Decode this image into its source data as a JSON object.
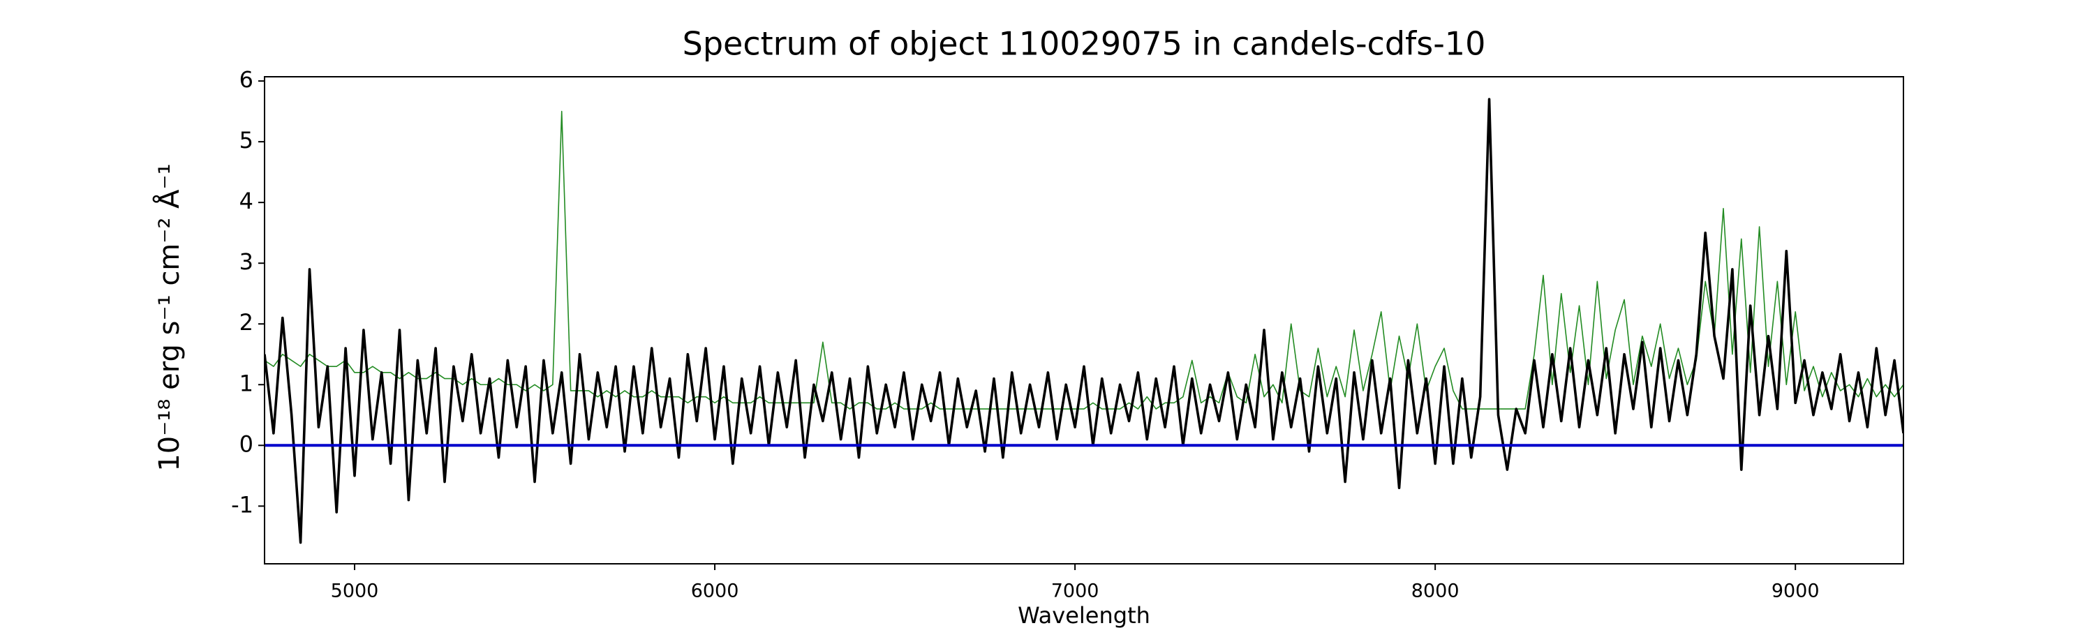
{
  "chart_data": {
    "type": "line",
    "title": "Spectrum of object 110029075 in candels-cdfs-10",
    "xlabel": "Wavelength",
    "ylabel": "10⁻¹⁸ erg s⁻¹ cm⁻² Å⁻¹",
    "xlim": [
      4750,
      9300
    ],
    "ylim": [
      -1.95,
      6.07
    ],
    "xticks": [
      5000,
      6000,
      7000,
      8000,
      9000
    ],
    "yticks": [
      -1,
      0,
      1,
      2,
      3,
      4,
      5,
      6
    ],
    "hlines": [
      {
        "value": 0,
        "color": "#0000cc"
      }
    ],
    "x": [
      4750,
      4775,
      4800,
      4825,
      4850,
      4875,
      4900,
      4925,
      4950,
      4975,
      5000,
      5025,
      5050,
      5075,
      5100,
      5125,
      5150,
      5175,
      5200,
      5225,
      5250,
      5275,
      5300,
      5325,
      5350,
      5375,
      5400,
      5425,
      5450,
      5475,
      5500,
      5525,
      5550,
      5575,
      5600,
      5625,
      5650,
      5675,
      5700,
      5725,
      5750,
      5775,
      5800,
      5825,
      5850,
      5875,
      5900,
      5925,
      5950,
      5975,
      6000,
      6025,
      6050,
      6075,
      6100,
      6125,
      6150,
      6175,
      6200,
      6225,
      6250,
      6275,
      6300,
      6325,
      6350,
      6375,
      6400,
      6425,
      6450,
      6475,
      6500,
      6525,
      6550,
      6575,
      6600,
      6625,
      6650,
      6675,
      6700,
      6725,
      6750,
      6775,
      6800,
      6825,
      6850,
      6875,
      6900,
      6925,
      6950,
      6975,
      7000,
      7025,
      7050,
      7075,
      7100,
      7125,
      7150,
      7175,
      7200,
      7225,
      7250,
      7275,
      7300,
      7325,
      7350,
      7375,
      7400,
      7425,
      7450,
      7475,
      7500,
      7525,
      7550,
      7575,
      7600,
      7625,
      7650,
      7675,
      7700,
      7725,
      7750,
      7775,
      7800,
      7825,
      7850,
      7875,
      7900,
      7925,
      7950,
      7975,
      8000,
      8025,
      8050,
      8075,
      8100,
      8125,
      8150,
      8175,
      8200,
      8225,
      8250,
      8275,
      8300,
      8325,
      8350,
      8375,
      8400,
      8425,
      8450,
      8475,
      8500,
      8525,
      8550,
      8575,
      8600,
      8625,
      8650,
      8675,
      8700,
      8725,
      8750,
      8775,
      8800,
      8825,
      8850,
      8875,
      8900,
      8925,
      8950,
      8975,
      9000,
      9025,
      9050,
      9075,
      9100,
      9125,
      9150,
      9175,
      9200,
      9225,
      9250,
      9275,
      9300
    ],
    "series": [
      {
        "color": "#000000",
        "values": [
          1.5,
          0.2,
          2.1,
          0.5,
          -1.6,
          2.9,
          0.3,
          1.3,
          -1.1,
          1.6,
          -0.5,
          1.9,
          0.1,
          1.2,
          -0.3,
          1.9,
          -0.9,
          1.4,
          0.2,
          1.6,
          -0.6,
          1.3,
          0.4,
          1.5,
          0.2,
          1.1,
          -0.2,
          1.4,
          0.3,
          1.3,
          -0.6,
          1.4,
          0.2,
          1.2,
          -0.3,
          1.5,
          0.1,
          1.2,
          0.3,
          1.3,
          -0.1,
          1.3,
          0.2,
          1.6,
          0.3,
          1.1,
          -0.2,
          1.5,
          0.4,
          1.6,
          0.1,
          1.3,
          -0.3,
          1.1,
          0.2,
          1.3,
          0.0,
          1.2,
          0.3,
          1.4,
          -0.2,
          1.0,
          0.4,
          1.2,
          0.1,
          1.1,
          -0.2,
          1.3,
          0.2,
          1.0,
          0.3,
          1.2,
          0.1,
          1.0,
          0.4,
          1.2,
          0.0,
          1.1,
          0.3,
          0.9,
          -0.1,
          1.1,
          -0.2,
          1.2,
          0.2,
          1.0,
          0.3,
          1.2,
          0.1,
          1.0,
          0.3,
          1.3,
          0.0,
          1.1,
          0.2,
          1.0,
          0.4,
          1.2,
          0.1,
          1.1,
          0.3,
          1.3,
          0.0,
          1.1,
          0.2,
          1.0,
          0.4,
          1.2,
          0.1,
          1.0,
          0.3,
          1.9,
          0.1,
          1.2,
          0.3,
          1.1,
          -0.1,
          1.3,
          0.2,
          1.1,
          -0.6,
          1.2,
          0.1,
          1.4,
          0.2,
          1.1,
          -0.7,
          1.4,
          0.2,
          1.1,
          -0.3,
          1.3,
          -0.3,
          1.1,
          -0.2,
          0.8,
          5.7,
          0.5,
          -0.4,
          0.6,
          0.2,
          1.4,
          0.3,
          1.5,
          0.4,
          1.6,
          0.3,
          1.4,
          0.5,
          1.6,
          0.2,
          1.5,
          0.6,
          1.7,
          0.3,
          1.6,
          0.4,
          1.4,
          0.5,
          1.5,
          3.5,
          1.8,
          1.1,
          2.9,
          -0.4,
          2.3,
          0.5,
          1.8,
          0.6,
          3.2,
          0.7,
          1.4,
          0.5,
          1.2,
          0.6,
          1.5,
          0.4,
          1.2,
          0.3,
          1.6,
          0.5,
          1.4,
          0.2
        ]
      },
      {
        "color": "#228b22",
        "values": [
          1.4,
          1.3,
          1.5,
          1.4,
          1.3,
          1.5,
          1.4,
          1.3,
          1.3,
          1.4,
          1.2,
          1.2,
          1.3,
          1.2,
          1.2,
          1.1,
          1.2,
          1.1,
          1.1,
          1.2,
          1.1,
          1.1,
          1.0,
          1.1,
          1.0,
          1.0,
          1.1,
          1.0,
          1.0,
          0.9,
          1.0,
          0.9,
          1.0,
          5.5,
          0.9,
          0.9,
          0.9,
          0.8,
          0.9,
          0.8,
          0.9,
          0.8,
          0.8,
          0.9,
          0.8,
          0.8,
          0.8,
          0.7,
          0.8,
          0.8,
          0.7,
          0.8,
          0.7,
          0.7,
          0.7,
          0.8,
          0.7,
          0.7,
          0.7,
          0.7,
          0.7,
          0.7,
          1.7,
          0.7,
          0.7,
          0.6,
          0.7,
          0.7,
          0.6,
          0.6,
          0.7,
          0.6,
          0.6,
          0.6,
          0.7,
          0.6,
          0.6,
          0.6,
          0.6,
          0.6,
          0.6,
          0.6,
          0.6,
          0.6,
          0.6,
          0.6,
          0.6,
          0.6,
          0.6,
          0.6,
          0.6,
          0.6,
          0.7,
          0.6,
          0.6,
          0.6,
          0.7,
          0.6,
          0.8,
          0.6,
          0.7,
          0.7,
          0.8,
          1.4,
          0.7,
          0.8,
          0.7,
          1.2,
          0.8,
          0.7,
          1.5,
          0.8,
          1.0,
          0.7,
          2.0,
          0.9,
          0.8,
          1.6,
          0.8,
          1.3,
          0.8,
          1.9,
          0.9,
          1.5,
          2.2,
          0.9,
          1.8,
          1.1,
          2.0,
          0.9,
          1.3,
          1.6,
          0.9,
          0.6,
          0.6,
          0.6,
          0.6,
          0.6,
          0.6,
          0.6,
          0.6,
          1.5,
          2.8,
          1.0,
          2.5,
          1.2,
          2.3,
          1.0,
          2.7,
          1.1,
          1.9,
          2.4,
          1.0,
          1.8,
          1.3,
          2.0,
          1.1,
          1.6,
          1.0,
          1.4,
          2.7,
          1.8,
          3.9,
          1.5,
          3.4,
          1.2,
          3.6,
          1.3,
          2.7,
          1.0,
          2.2,
          0.9,
          1.3,
          0.8,
          1.2,
          0.9,
          1.0,
          0.8,
          1.1,
          0.8,
          1.0,
          0.8,
          1.0
        ]
      }
    ]
  }
}
